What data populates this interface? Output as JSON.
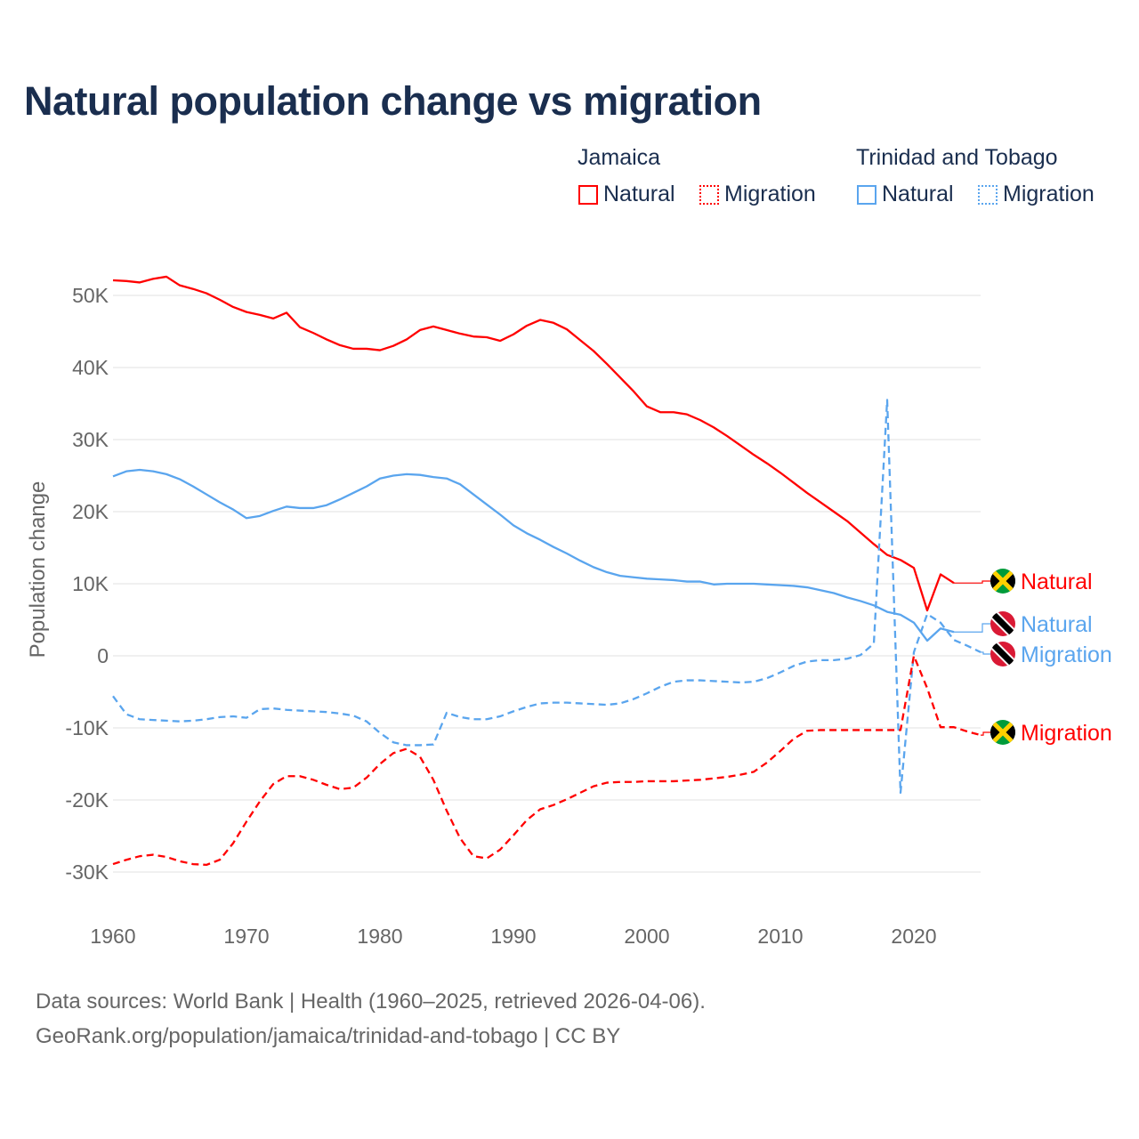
{
  "title": "Natural population change vs migration",
  "legend": {
    "groups": [
      {
        "name": "Jamaica",
        "items": [
          {
            "label": "Natural",
            "style": "solid"
          },
          {
            "label": "Migration",
            "style": "dotted"
          }
        ],
        "color": "#ff0000"
      },
      {
        "name": "Trinidad and Tobago",
        "items": [
          {
            "label": "Natural",
            "style": "solid"
          },
          {
            "label": "Migration",
            "style": "dotted"
          }
        ],
        "color": "#5aa5ee"
      }
    ]
  },
  "footer": {
    "line1": "Data sources: World Bank | Health (1960–2025, retrieved 2026-04-06).",
    "line2": "GeoRank.org/population/jamaica/trinidad-and-tobago | CC BY"
  },
  "chart_data": {
    "type": "line",
    "title": "Natural population change vs migration",
    "xlabel": "",
    "ylabel": "Population change",
    "xlim": [
      1960,
      2025
    ],
    "ylim": [
      -35000,
      55000
    ],
    "x_ticks": [
      "1960",
      "1970",
      "1980",
      "1990",
      "2000",
      "2010",
      "2020"
    ],
    "y_ticks": [
      {
        "v": 50000,
        "label": "50K"
      },
      {
        "v": 40000,
        "label": "40K"
      },
      {
        "v": 30000,
        "label": "30K"
      },
      {
        "v": 20000,
        "label": "20K"
      },
      {
        "v": 10000,
        "label": "10K"
      },
      {
        "v": 0,
        "label": "0"
      },
      {
        "v": -10000,
        "label": "-10K"
      },
      {
        "v": -20000,
        "label": "-20K"
      },
      {
        "v": -30000,
        "label": "-30K"
      }
    ],
    "grid": true,
    "legend_placement": "top-right",
    "series": [
      {
        "name": "Jamaica Natural",
        "end_label": "Natural",
        "country": "jamaica",
        "color": "#ff0000",
        "dashed": false,
        "start_year": 1960,
        "values": [
          52.1,
          52.0,
          51.8,
          52.3,
          52.6,
          51.4,
          50.9,
          50.3,
          49.4,
          48.4,
          47.7,
          47.3,
          46.8,
          47.6,
          45.6,
          44.8,
          43.9,
          43.1,
          42.6,
          42.6,
          42.4,
          43.0,
          43.9,
          45.2,
          45.7,
          45.2,
          44.7,
          44.3,
          44.2,
          43.7,
          44.6,
          45.8,
          46.6,
          46.2,
          45.3,
          43.8,
          42.3,
          40.5,
          38.6,
          36.7,
          34.6,
          33.8,
          33.8,
          33.5,
          32.7,
          31.7,
          30.5,
          29.2,
          27.9,
          26.7,
          25.4,
          24.0,
          22.6,
          21.3,
          20.0,
          18.7,
          17.1,
          15.5,
          14.0,
          13.3,
          12.2,
          6.3,
          11.3,
          10.1
        ]
      },
      {
        "name": "Trinidad and Tobago Natural",
        "end_label": "Natural",
        "country": "trinidad",
        "color": "#5aa5ee",
        "dashed": false,
        "start_year": 1960,
        "values": [
          24.9,
          25.6,
          25.8,
          25.6,
          25.2,
          24.5,
          23.5,
          22.4,
          21.3,
          20.3,
          19.1,
          19.4,
          20.1,
          20.7,
          20.5,
          20.5,
          20.9,
          21.7,
          22.6,
          23.5,
          24.6,
          25.0,
          25.2,
          25.1,
          24.8,
          24.6,
          23.8,
          22.4,
          21.0,
          19.6,
          18.1,
          17.0,
          16.1,
          15.1,
          14.2,
          13.2,
          12.3,
          11.6,
          11.1,
          10.9,
          10.7,
          10.6,
          10.5,
          10.3,
          10.3,
          9.9,
          10.0,
          10.0,
          10.0,
          9.9,
          9.8,
          9.7,
          9.5,
          9.1,
          8.7,
          8.1,
          7.6,
          7.0,
          6.1,
          5.7,
          4.6,
          2.1,
          3.8,
          3.3
        ]
      },
      {
        "name": "Trinidad and Tobago Migration",
        "end_label": "Migration",
        "country": "trinidad",
        "color": "#5aa5ee",
        "dashed": true,
        "start_year": 1960,
        "values": [
          -5.6,
          -8.1,
          -8.8,
          -8.9,
          -9.0,
          -9.1,
          -9.0,
          -8.8,
          -8.5,
          -8.4,
          -8.6,
          -7.4,
          -7.3,
          -7.5,
          -7.6,
          -7.7,
          -7.8,
          -8.0,
          -8.3,
          -9.1,
          -10.7,
          -12.0,
          -12.4,
          -12.4,
          -12.3,
          -7.9,
          -8.5,
          -8.8,
          -8.8,
          -8.4,
          -7.7,
          -7.1,
          -6.6,
          -6.5,
          -6.5,
          -6.6,
          -6.7,
          -6.8,
          -6.6,
          -6.0,
          -5.2,
          -4.3,
          -3.6,
          -3.4,
          -3.4,
          -3.5,
          -3.6,
          -3.7,
          -3.6,
          -3.1,
          -2.3,
          -1.4,
          -0.8,
          -0.6,
          -0.6,
          -0.4,
          0.1,
          1.7,
          35.5,
          -19.0,
          0.5,
          5.8,
          4.6,
          2.2,
          1.4,
          0.5
        ]
      },
      {
        "name": "Jamaica Migration",
        "end_label": "Migration",
        "country": "jamaica",
        "color": "#ff0000",
        "dashed": true,
        "start_year": 1960,
        "values": [
          -28.9,
          -28.3,
          -27.8,
          -27.6,
          -27.9,
          -28.5,
          -28.9,
          -29.0,
          -28.3,
          -26.0,
          -23.0,
          -20.2,
          -17.8,
          -16.7,
          -16.7,
          -17.2,
          -17.9,
          -18.5,
          -18.3,
          -16.9,
          -15.0,
          -13.5,
          -12.9,
          -14.0,
          -17.2,
          -21.5,
          -25.3,
          -27.8,
          -28.1,
          -26.9,
          -24.9,
          -22.8,
          -21.3,
          -20.7,
          -19.9,
          -19.0,
          -18.1,
          -17.6,
          -17.5,
          -17.5,
          -17.4,
          -17.4,
          -17.4,
          -17.3,
          -17.2,
          -17.0,
          -16.8,
          -16.5,
          -16.1,
          -14.8,
          -13.2,
          -11.5,
          -10.4,
          -10.3,
          -10.3,
          -10.3,
          -10.3,
          -10.3,
          -10.3,
          -10.3,
          0.0,
          -4.5,
          -9.9,
          -9.9,
          -10.5,
          -11.0
        ]
      }
    ],
    "value_unit": "thousands"
  }
}
